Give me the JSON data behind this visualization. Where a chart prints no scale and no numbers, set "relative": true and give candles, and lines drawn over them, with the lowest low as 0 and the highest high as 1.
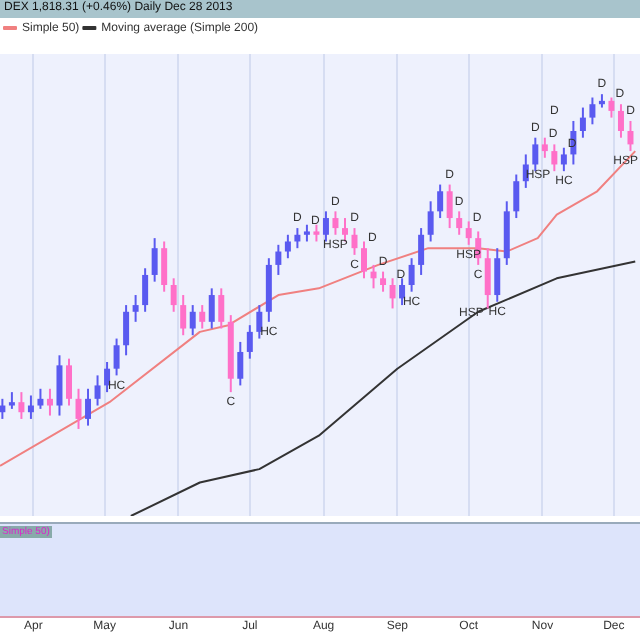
{
  "chart_data": {
    "type": "candlestick",
    "title": "DEX  1,818.31 (+0.46%)   Daily Dec 28 2013",
    "relative": true,
    "legend": "top left",
    "grid": "x",
    "xlim": [
      "2013-03-18",
      "2013-12-12"
    ],
    "xticks": [
      {
        "value": "2013-04-01",
        "label": "Apr"
      },
      {
        "value": "2013-05-01",
        "label": "May"
      },
      {
        "value": "2013-06-01",
        "label": "Jun"
      },
      {
        "value": "2013-07-01",
        "label": "Jul"
      },
      {
        "value": "2013-08-01",
        "label": "Aug"
      },
      {
        "value": "2013-09-01",
        "label": "Sep"
      },
      {
        "value": "2013-10-01",
        "label": "Oct"
      },
      {
        "value": "2013-11-01",
        "label": "Nov"
      },
      {
        "value": "2013-12-01",
        "label": "Dec"
      }
    ],
    "x": [
      "2013-03-19",
      "2013-03-23",
      "2013-03-27",
      "2013-03-31",
      "2013-04-04",
      "2013-04-08",
      "2013-04-12",
      "2013-04-16",
      "2013-04-20",
      "2013-04-24",
      "2013-04-28",
      "2013-05-02",
      "2013-05-06",
      "2013-05-10",
      "2013-05-14",
      "2013-05-18",
      "2013-05-22",
      "2013-05-26",
      "2013-05-30",
      "2013-06-03",
      "2013-06-07",
      "2013-06-11",
      "2013-06-15",
      "2013-06-19",
      "2013-06-23",
      "2013-06-27",
      "2013-07-01",
      "2013-07-05",
      "2013-07-09",
      "2013-07-13",
      "2013-07-17",
      "2013-07-21",
      "2013-07-25",
      "2013-07-29",
      "2013-08-02",
      "2013-08-06",
      "2013-08-10",
      "2013-08-14",
      "2013-08-18",
      "2013-08-22",
      "2013-08-26",
      "2013-08-30",
      "2013-09-03",
      "2013-09-07",
      "2013-09-11",
      "2013-09-15",
      "2013-09-19",
      "2013-09-23",
      "2013-09-27",
      "2013-10-01",
      "2013-10-05",
      "2013-10-09",
      "2013-10-13",
      "2013-10-17",
      "2013-10-21",
      "2013-10-25",
      "2013-10-29",
      "2013-11-02",
      "2013-11-06",
      "2013-11-10",
      "2013-11-14",
      "2013-11-18",
      "2013-11-22",
      "2013-11-26",
      "2013-11-30",
      "2013-12-04",
      "2013-12-08"
    ],
    "ohlc": [
      [
        0.05,
        0.09,
        0.03,
        0.07
      ],
      [
        0.07,
        0.11,
        0.06,
        0.08
      ],
      [
        0.08,
        0.11,
        0.03,
        0.05
      ],
      [
        0.05,
        0.1,
        0.03,
        0.07
      ],
      [
        0.07,
        0.12,
        0.06,
        0.09
      ],
      [
        0.09,
        0.12,
        0.04,
        0.07
      ],
      [
        0.07,
        0.22,
        0.04,
        0.19
      ],
      [
        0.19,
        0.21,
        0.07,
        0.09
      ],
      [
        0.09,
        0.12,
        0,
        0.03
      ],
      [
        0.03,
        0.12,
        0.01,
        0.09
      ],
      [
        0.09,
        0.16,
        0.07,
        0.13
      ],
      [
        0.13,
        0.2,
        0.11,
        0.18
      ],
      [
        0.18,
        0.27,
        0.16,
        0.25
      ],
      [
        0.25,
        0.37,
        0.22,
        0.35
      ],
      [
        0.35,
        0.4,
        0.32,
        0.37
      ],
      [
        0.37,
        0.48,
        0.35,
        0.46
      ],
      [
        0.46,
        0.57,
        0.44,
        0.54
      ],
      [
        0.54,
        0.56,
        0.41,
        0.43
      ],
      [
        0.43,
        0.45,
        0.35,
        0.37
      ],
      [
        0.37,
        0.4,
        0.28,
        0.3
      ],
      [
        0.3,
        0.37,
        0.28,
        0.35
      ],
      [
        0.35,
        0.37,
        0.3,
        0.32
      ],
      [
        0.32,
        0.42,
        0.3,
        0.4
      ],
      [
        0.4,
        0.42,
        0.3,
        0.32
      ],
      [
        0.32,
        0.34,
        0.11,
        0.15
      ],
      [
        0.15,
        0.26,
        0.13,
        0.23
      ],
      [
        0.23,
        0.31,
        0.21,
        0.29
      ],
      [
        0.29,
        0.37,
        0.27,
        0.35
      ],
      [
        0.35,
        0.51,
        0.32,
        0.49
      ],
      [
        0.49,
        0.55,
        0.46,
        0.53
      ],
      [
        0.53,
        0.58,
        0.51,
        0.56
      ],
      [
        0.56,
        0.6,
        0.54,
        0.58
      ],
      [
        0.58,
        0.61,
        0.56,
        0.59
      ],
      [
        0.59,
        0.61,
        0.56,
        0.58
      ],
      [
        0.58,
        0.65,
        0.56,
        0.63
      ],
      [
        0.63,
        0.65,
        0.58,
        0.6
      ],
      [
        0.6,
        0.63,
        0.56,
        0.58
      ],
      [
        0.58,
        0.6,
        0.52,
        0.54
      ],
      [
        0.54,
        0.56,
        0.45,
        0.47
      ],
      [
        0.47,
        0.49,
        0.42,
        0.45
      ],
      [
        0.45,
        0.47,
        0.41,
        0.43
      ],
      [
        0.43,
        0.45,
        0.36,
        0.39
      ],
      [
        0.39,
        0.45,
        0.37,
        0.43
      ],
      [
        0.43,
        0.51,
        0.41,
        0.49
      ],
      [
        0.49,
        0.6,
        0.46,
        0.58
      ],
      [
        0.58,
        0.68,
        0.56,
        0.65
      ],
      [
        0.65,
        0.73,
        0.63,
        0.71
      ],
      [
        0.71,
        0.73,
        0.6,
        0.63
      ],
      [
        0.63,
        0.65,
        0.58,
        0.6
      ],
      [
        0.6,
        0.62,
        0.55,
        0.57
      ],
      [
        0.57,
        0.59,
        0.49,
        0.51
      ],
      [
        0.51,
        0.54,
        0.36,
        0.4
      ],
      [
        0.4,
        0.54,
        0.38,
        0.51
      ],
      [
        0.51,
        0.68,
        0.49,
        0.65
      ],
      [
        0.65,
        0.76,
        0.63,
        0.74
      ],
      [
        0.74,
        0.82,
        0.72,
        0.79
      ],
      [
        0.79,
        0.87,
        0.77,
        0.85
      ],
      [
        0.85,
        0.87,
        0.81,
        0.83
      ],
      [
        0.83,
        0.85,
        0.77,
        0.79
      ],
      [
        0.79,
        0.84,
        0.77,
        0.82
      ],
      [
        0.82,
        0.92,
        0.79,
        0.89
      ],
      [
        0.89,
        0.96,
        0.87,
        0.93
      ],
      [
        0.93,
        0.99,
        0.91,
        0.97
      ],
      [
        0.97,
        1,
        0.96,
        0.98
      ],
      [
        0.98,
        0.99,
        0.93,
        0.95
      ],
      [
        0.95,
        0.97,
        0.87,
        0.89
      ],
      [
        0.89,
        0.92,
        0.83,
        0.85
      ]
    ],
    "series": [
      {
        "type": "line",
        "name": "Simple 50)",
        "color": "#f08080",
        "x": [
          "2013-03-18",
          "2013-05-03",
          "2013-06-10",
          "2013-06-22",
          "2013-07-13",
          "2013-07-30",
          "2013-08-24",
          "2013-09-14",
          "2013-10-05",
          "2013-10-17",
          "2013-10-30",
          "2013-11-07",
          "2013-11-24",
          "2013-12-10"
        ],
        "values": [
          -0.11,
          0.08,
          0.29,
          0.31,
          0.4,
          0.42,
          0.49,
          0.54,
          0.54,
          0.53,
          0.57,
          0.64,
          0.71,
          0.83
        ]
      },
      {
        "type": "line",
        "name": "Moving average (Simple 200)",
        "color": "#333333",
        "x": [
          "2013-05-12",
          "2013-06-10",
          "2013-07-05",
          "2013-07-30",
          "2013-09-01",
          "2013-10-05",
          "2013-11-07",
          "2013-12-10"
        ],
        "values": [
          -0.26,
          -0.16,
          -0.12,
          -0.02,
          0.18,
          0.35,
          0.45,
          0.5
        ]
      }
    ],
    "annotations": [
      {
        "text": "D",
        "x": "2013-07-21",
        "y": 0.6
      },
      {
        "text": "D",
        "x": "2013-07-25",
        "y": 0.61
      },
      {
        "text": "D",
        "x": "2013-08-06",
        "y": 0.65
      },
      {
        "text": "D",
        "x": "2013-08-14",
        "y": 0.6
      },
      {
        "text": "D",
        "x": "2013-08-18",
        "y": 0.56
      },
      {
        "text": "D",
        "x": "2013-08-26",
        "y": 0.47
      },
      {
        "text": "D",
        "x": "2013-08-30",
        "y": 0.45
      },
      {
        "text": "D",
        "x": "2013-09-23",
        "y": 0.73
      },
      {
        "text": "D",
        "x": "2013-09-27",
        "y": 0.65
      },
      {
        "text": "D",
        "x": "2013-10-01",
        "y": 0.62
      },
      {
        "text": "D",
        "x": "2013-10-29",
        "y": 0.87
      },
      {
        "text": "D",
        "x": "2013-11-02",
        "y": 0.87
      },
      {
        "text": "D",
        "x": "2013-11-06",
        "y": 0.85
      },
      {
        "text": "D",
        "x": "2013-11-10",
        "y": 0.84
      },
      {
        "text": "D",
        "x": "2013-11-26",
        "y": 1
      },
      {
        "text": "D",
        "x": "2013-11-30",
        "y": 0.99
      },
      {
        "text": "D",
        "x": "2013-12-08",
        "y": 0.92
      },
      {
        "text": "HC",
        "x": "2013-05-06",
        "y": 0.16
      },
      {
        "text": "HC",
        "x": "2013-07-09",
        "y": 0.32
      },
      {
        "text": "HC",
        "x": "2013-09-07",
        "y": 0.41
      },
      {
        "text": "HC",
        "x": "2013-10-13",
        "y": 0.38
      },
      {
        "text": "HC",
        "x": "2013-11-10",
        "y": 0.77
      },
      {
        "text": "C",
        "x": "2013-06-23",
        "y": 0.11
      },
      {
        "text": "C",
        "x": "2013-08-14",
        "y": 0.52
      },
      {
        "text": "C",
        "x": "2013-10-05",
        "y": 0.49
      },
      {
        "text": "HSP",
        "x": "2013-08-06",
        "y": 0.58
      },
      {
        "text": "HSP",
        "x": "2013-10-01",
        "y": 0.55
      },
      {
        "text": "HSP",
        "x": "2013-10-09",
        "y": 0.36
      },
      {
        "text": "HSP",
        "x": "2013-11-06",
        "y": 0.77
      },
      {
        "text": "HSP",
        "x": "2013-12-08",
        "y": 0.83
      },
      "Simple 50)"
    ]
  }
}
